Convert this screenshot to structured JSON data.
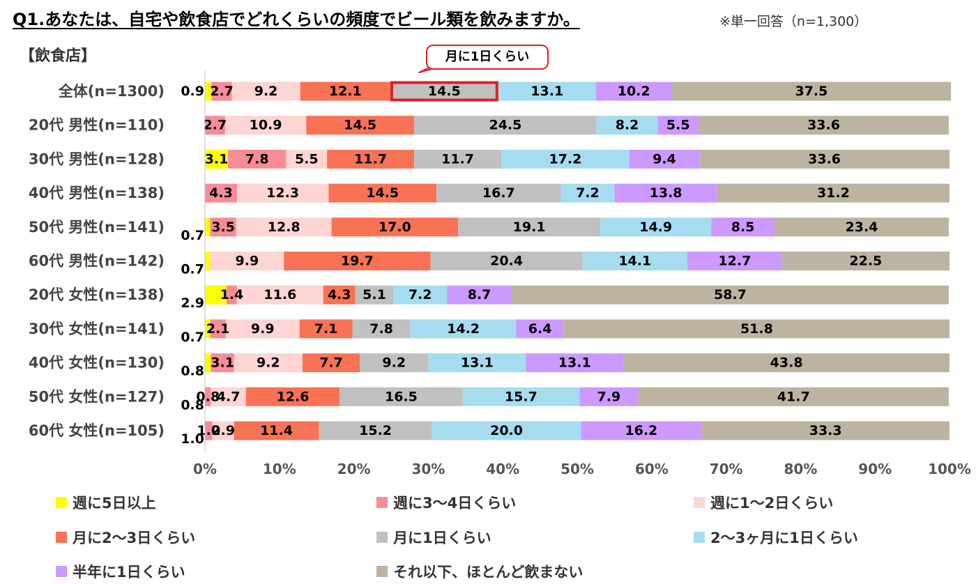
{
  "header": {
    "title": "Q1.あなたは、自宅や飲食店でどれくらいの頻度でビール類を飲みますか。",
    "note": "※単一回答（n=1,300）",
    "section": "【飲食店】",
    "callout": "月に1日くらい"
  },
  "chart_data": {
    "type": "bar",
    "orientation": "horizontal",
    "stacked": "100%",
    "categories": [
      "全体(n=1300)",
      "20代 男性(n=110)",
      "30代 男性(n=128)",
      "40代 男性(n=138)",
      "50代 男性(n=141)",
      "60代 男性(n=142)",
      "20代 女性(n=138)",
      "30代 女性(n=141)",
      "40代 女性(n=130)",
      "50代 女性(n=127)",
      "60代 女性(n=105)"
    ],
    "series": [
      {
        "name": "週に5日以上",
        "color": "#ffff00",
        "values": [
          0.9,
          0,
          3.1,
          0,
          0.7,
          0.7,
          2.9,
          0.7,
          0.8,
          0,
          0
        ]
      },
      {
        "name": "週に3～4日くらい",
        "color": "#f78c96",
        "values": [
          2.7,
          2.7,
          7.8,
          4.3,
          3.5,
          0,
          1.4,
          2.1,
          3.1,
          0.8,
          1.0
        ]
      },
      {
        "name": "週に1～2日くらい",
        "color": "#fdd5d2",
        "values": [
          9.2,
          10.9,
          5.5,
          12.3,
          12.8,
          9.9,
          11.6,
          9.9,
          9.2,
          4.7,
          2.9
        ]
      },
      {
        "name": "月に2～3日くらい",
        "color": "#f87255",
        "values": [
          12.1,
          14.5,
          11.7,
          14.5,
          17.0,
          19.7,
          4.3,
          7.1,
          7.7,
          12.6,
          11.4
        ]
      },
      {
        "name": "月に1日くらい",
        "color": "#c0c0c0",
        "values": [
          14.5,
          24.5,
          11.7,
          16.7,
          19.1,
          20.4,
          5.1,
          7.8,
          9.2,
          16.5,
          15.2
        ]
      },
      {
        "name": "2～3ヶ月に1日くらい",
        "color": "#a5dcf0",
        "values": [
          13.1,
          8.2,
          17.2,
          7.2,
          14.9,
          14.1,
          7.2,
          14.2,
          13.1,
          15.7,
          20.0
        ]
      },
      {
        "name": "半年に1日くらい",
        "color": "#cc99ff",
        "values": [
          10.2,
          5.5,
          9.4,
          13.8,
          8.5,
          12.7,
          8.7,
          6.4,
          13.1,
          7.9,
          16.2
        ]
      },
      {
        "name": "それ以下、ほとんど飲まない",
        "color": "#bcb3a0",
        "values": [
          37.5,
          33.6,
          33.6,
          31.2,
          23.4,
          22.5,
          58.7,
          51.8,
          43.8,
          41.7,
          33.3
        ]
      }
    ],
    "outside_labels": [
      {
        "category_index": 0,
        "text": "0.9"
      },
      {
        "category_index": 4,
        "text": "0.7"
      },
      {
        "category_index": 5,
        "text": "0.7"
      },
      {
        "category_index": 6,
        "text": "2.9"
      },
      {
        "category_index": 7,
        "text": "0.7"
      },
      {
        "category_index": 8,
        "text": "0.8"
      },
      {
        "category_index": 9,
        "text": "0.8"
      },
      {
        "category_index": 10,
        "text": "1.0"
      }
    ],
    "highlight": {
      "category_index": 0,
      "series_index": 4,
      "color": "#e02020"
    },
    "xlim": [
      0,
      100
    ],
    "xticks": [
      "0%",
      "10%",
      "20%",
      "30%",
      "40%",
      "50%",
      "60%",
      "70%",
      "80%",
      "90%",
      "100%"
    ],
    "grid": false,
    "legend_position": "bottom"
  }
}
